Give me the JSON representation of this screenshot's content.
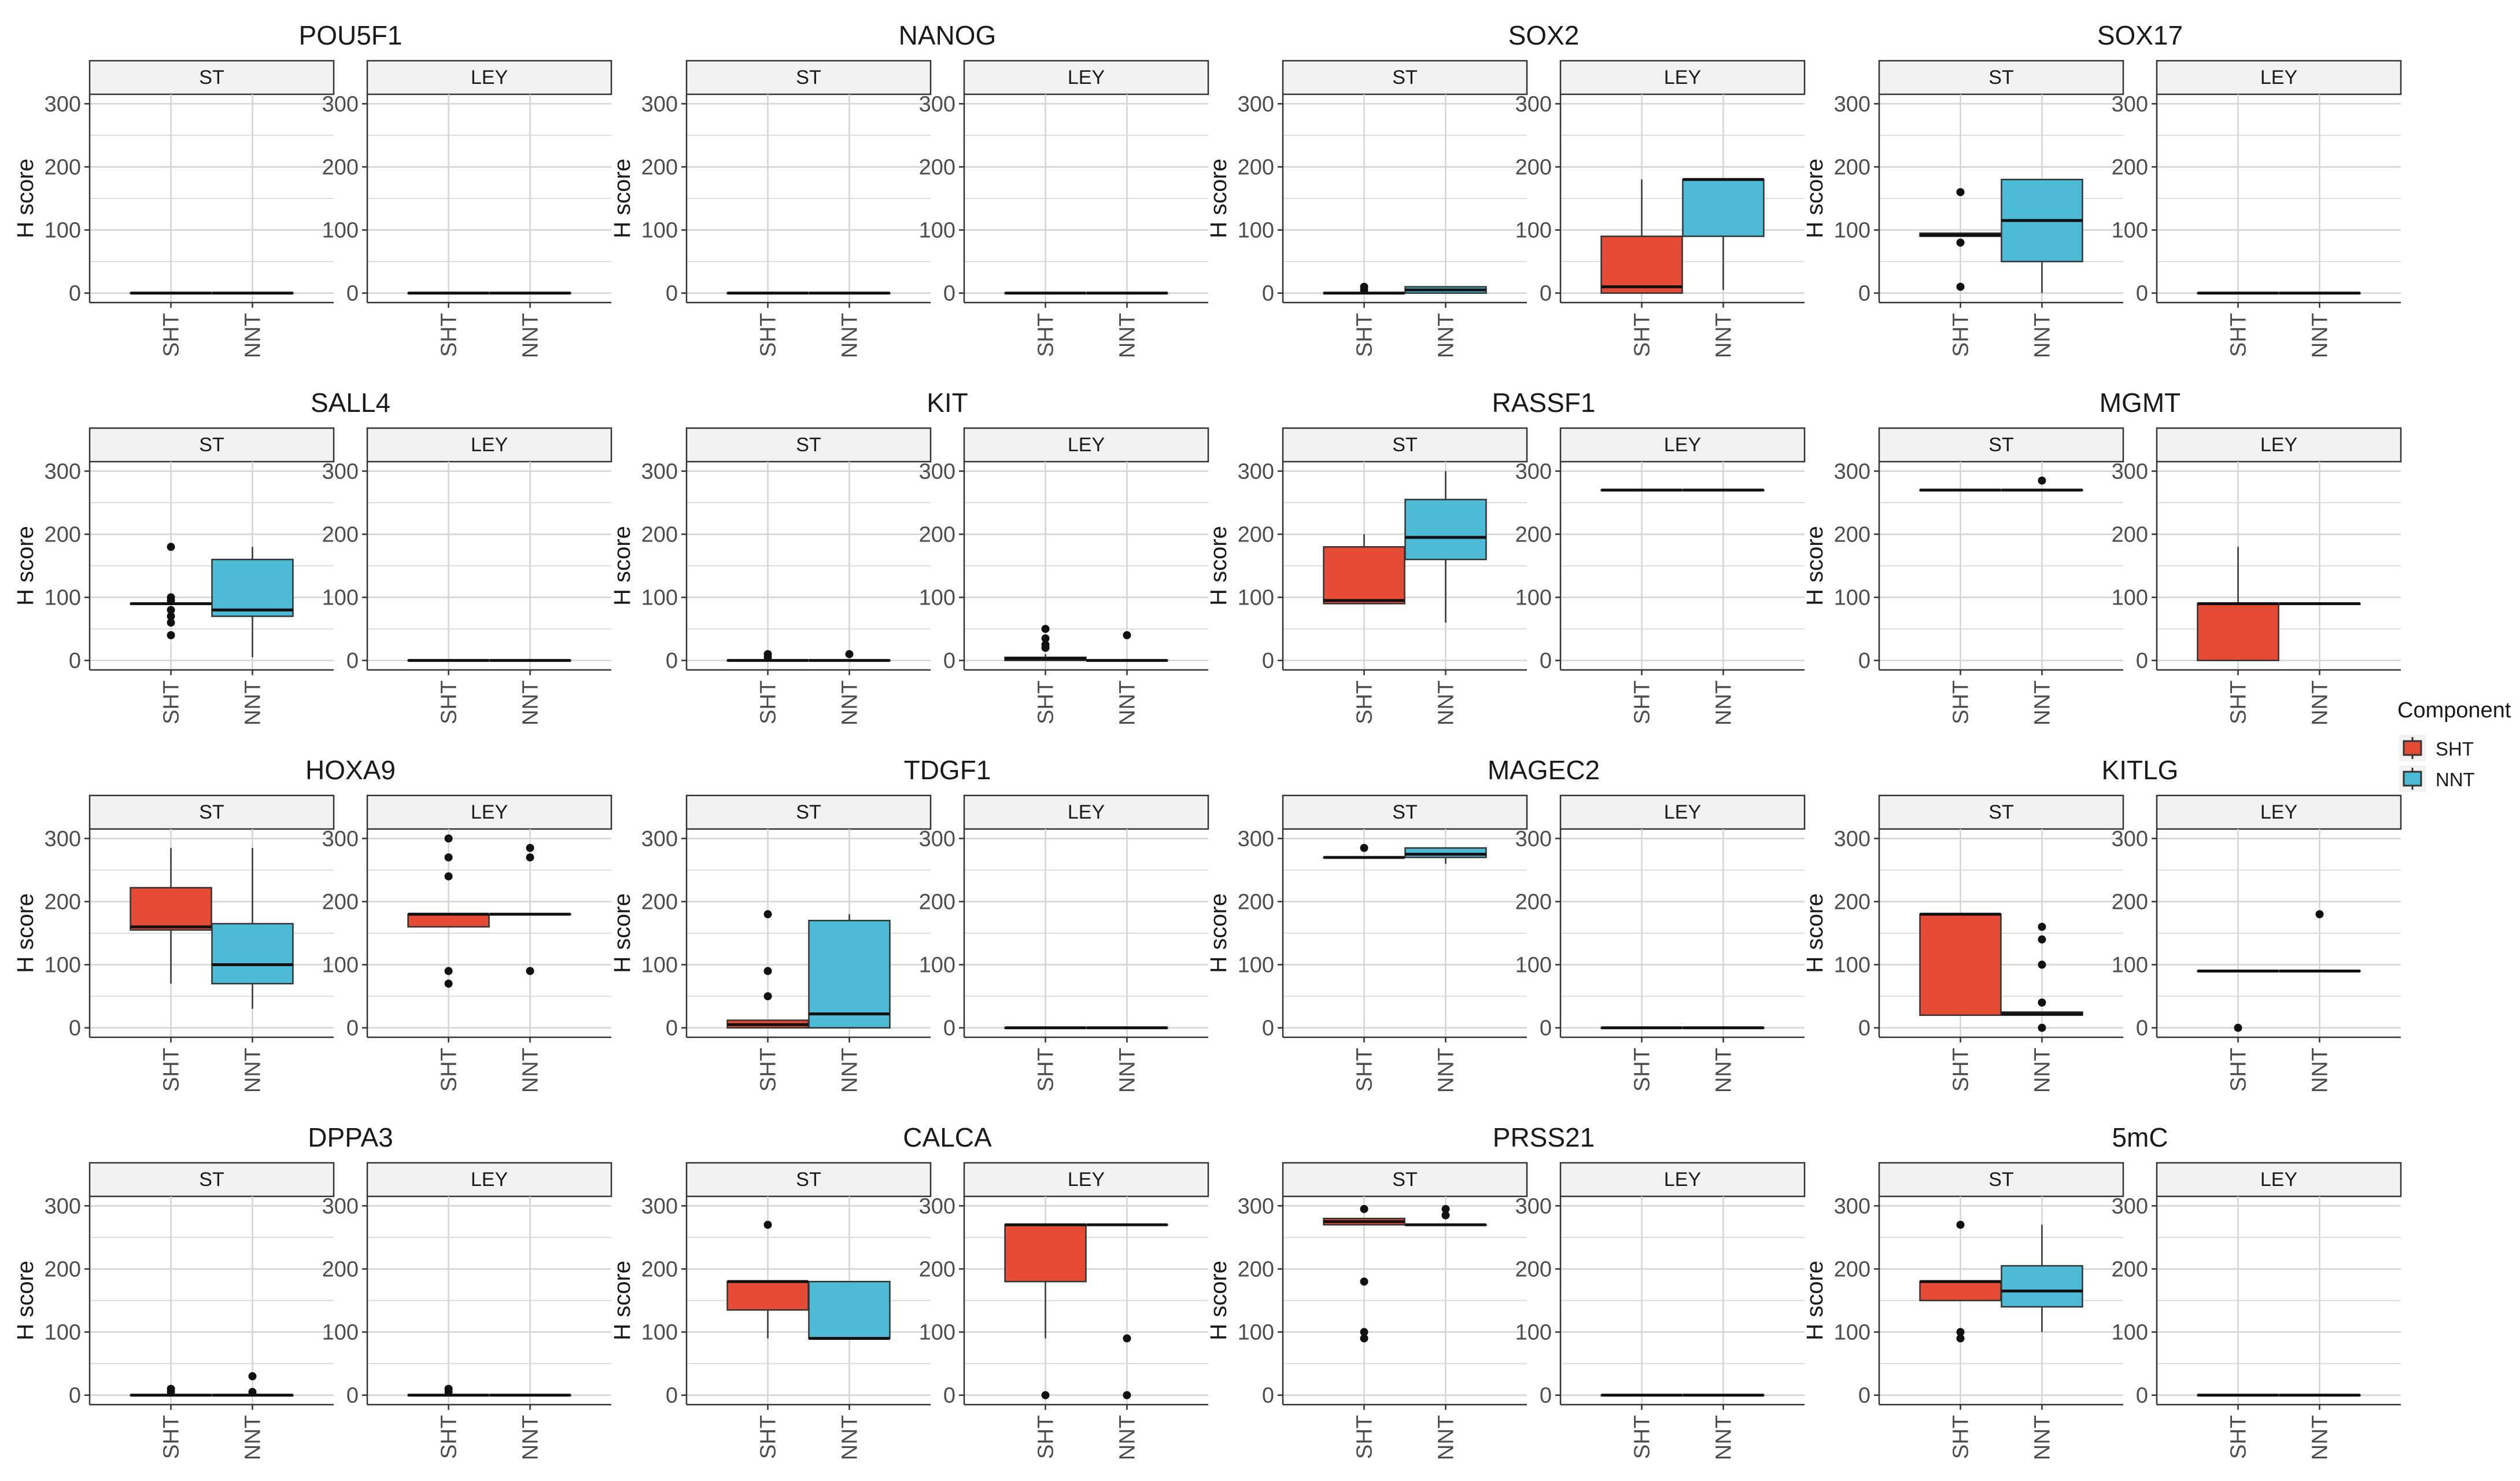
{
  "chart_data": {
    "type": "boxplot",
    "ylabel": "H score",
    "ylim": [
      -15,
      315
    ],
    "y_ticks": [
      0,
      100,
      200,
      300
    ],
    "x_categories": [
      "SHT",
      "NNT"
    ],
    "facets": [
      "ST",
      "LEY"
    ],
    "legend": {
      "title": "Component",
      "position": "right",
      "items": [
        {
          "label": "SHT",
          "color": "#e64b35"
        },
        {
          "label": "NNT",
          "color": "#4dbbd5"
        }
      ]
    },
    "panels": [
      {
        "gene": "POU5F1",
        "ST": {
          "SHT": {
            "q1": 0,
            "med": 0,
            "q3": 0,
            "lo": 0,
            "hi": 0,
            "out": []
          },
          "NNT": {
            "q1": 0,
            "med": 0,
            "q3": 0,
            "lo": 0,
            "hi": 0,
            "out": []
          }
        },
        "LEY": {
          "SHT": {
            "q1": 0,
            "med": 0,
            "q3": 0,
            "lo": 0,
            "hi": 0,
            "out": []
          },
          "NNT": {
            "q1": 0,
            "med": 0,
            "q3": 0,
            "lo": 0,
            "hi": 0,
            "out": []
          }
        }
      },
      {
        "gene": "NANOG",
        "ST": {
          "SHT": {
            "q1": 0,
            "med": 0,
            "q3": 0,
            "lo": 0,
            "hi": 0,
            "out": []
          },
          "NNT": {
            "q1": 0,
            "med": 0,
            "q3": 0,
            "lo": 0,
            "hi": 0,
            "out": []
          }
        },
        "LEY": {
          "SHT": {
            "q1": 0,
            "med": 0,
            "q3": 0,
            "lo": 0,
            "hi": 0,
            "out": []
          },
          "NNT": {
            "q1": 0,
            "med": 0,
            "q3": 0,
            "lo": 0,
            "hi": 0,
            "out": []
          }
        }
      },
      {
        "gene": "SOX2",
        "ST": {
          "SHT": {
            "q1": 0,
            "med": 0,
            "q3": 0,
            "lo": 0,
            "hi": 0,
            "out": [
              10,
              5
            ]
          },
          "NNT": {
            "q1": 0,
            "med": 5,
            "q3": 10,
            "lo": 0,
            "hi": 10,
            "out": []
          }
        },
        "LEY": {
          "SHT": {
            "q1": 0,
            "med": 10,
            "q3": 90,
            "lo": 0,
            "hi": 180,
            "out": []
          },
          "NNT": {
            "q1": 90,
            "med": 180,
            "q3": 180,
            "lo": 5,
            "hi": 180,
            "out": []
          }
        }
      },
      {
        "gene": "SOX17",
        "ST": {
          "SHT": {
            "q1": 90,
            "med": 92,
            "q3": 95,
            "lo": 90,
            "hi": 95,
            "out": [
              160,
              80,
              10
            ]
          },
          "NNT": {
            "q1": 50,
            "med": 115,
            "q3": 180,
            "lo": 0,
            "hi": 180,
            "out": []
          }
        },
        "LEY": {
          "SHT": {
            "q1": 0,
            "med": 0,
            "q3": 0,
            "lo": 0,
            "hi": 0,
            "out": []
          },
          "NNT": {
            "q1": 0,
            "med": 0,
            "q3": 0,
            "lo": 0,
            "hi": 0,
            "out": []
          }
        }
      },
      {
        "gene": "SALL4",
        "ST": {
          "SHT": {
            "q1": 90,
            "med": 90,
            "q3": 90,
            "lo": 90,
            "hi": 90,
            "out": [
              180,
              100,
              95,
              80,
              70,
              60,
              40
            ]
          },
          "NNT": {
            "q1": 70,
            "med": 80,
            "q3": 160,
            "lo": 5,
            "hi": 180,
            "out": []
          }
        },
        "LEY": {
          "SHT": {
            "q1": 0,
            "med": 0,
            "q3": 0,
            "lo": 0,
            "hi": 0,
            "out": []
          },
          "NNT": {
            "q1": 0,
            "med": 0,
            "q3": 0,
            "lo": 0,
            "hi": 0,
            "out": []
          }
        }
      },
      {
        "gene": "KIT",
        "ST": {
          "SHT": {
            "q1": 0,
            "med": 0,
            "q3": 0,
            "lo": 0,
            "hi": 0,
            "out": [
              10,
              5
            ]
          },
          "NNT": {
            "q1": 0,
            "med": 0,
            "q3": 0,
            "lo": 0,
            "hi": 0,
            "out": [
              10
            ]
          }
        },
        "LEY": {
          "SHT": {
            "q1": 0,
            "med": 3,
            "q3": 5,
            "lo": 0,
            "hi": 10,
            "out": [
              50,
              35,
              25,
              20
            ]
          },
          "NNT": {
            "q1": 0,
            "med": 0,
            "q3": 0,
            "lo": 0,
            "hi": 0,
            "out": [
              40
            ]
          }
        }
      },
      {
        "gene": "RASSF1",
        "ST": {
          "SHT": {
            "q1": 90,
            "med": 95,
            "q3": 180,
            "lo": 90,
            "hi": 200,
            "out": []
          },
          "NNT": {
            "q1": 160,
            "med": 195,
            "q3": 255,
            "lo": 60,
            "hi": 300,
            "out": []
          }
        },
        "LEY": {
          "SHT": {
            "q1": 270,
            "med": 270,
            "q3": 270,
            "lo": 270,
            "hi": 270,
            "out": []
          },
          "NNT": {
            "q1": 270,
            "med": 270,
            "q3": 270,
            "lo": 270,
            "hi": 270,
            "out": []
          }
        }
      },
      {
        "gene": "MGMT",
        "ST": {
          "SHT": {
            "q1": 270,
            "med": 270,
            "q3": 270,
            "lo": 270,
            "hi": 270,
            "out": []
          },
          "NNT": {
            "q1": 270,
            "med": 270,
            "q3": 270,
            "lo": 270,
            "hi": 270,
            "out": [
              285
            ]
          }
        },
        "LEY": {
          "SHT": {
            "q1": 0,
            "med": 90,
            "q3": 90,
            "lo": 0,
            "hi": 180,
            "out": []
          },
          "NNT": {
            "q1": 90,
            "med": 90,
            "q3": 90,
            "lo": 90,
            "hi": 90,
            "out": []
          }
        }
      },
      {
        "gene": "HOXA9",
        "ST": {
          "SHT": {
            "q1": 155,
            "med": 160,
            "q3": 222,
            "lo": 70,
            "hi": 285,
            "out": []
          },
          "NNT": {
            "q1": 70,
            "med": 100,
            "q3": 165,
            "lo": 30,
            "hi": 285,
            "out": []
          }
        },
        "LEY": {
          "SHT": {
            "q1": 160,
            "med": 180,
            "q3": 180,
            "lo": 160,
            "hi": 180,
            "out": [
              300,
              270,
              240,
              90,
              70
            ]
          },
          "NNT": {
            "q1": 180,
            "med": 180,
            "q3": 180,
            "lo": 180,
            "hi": 180,
            "out": [
              285,
              270,
              90
            ]
          }
        }
      },
      {
        "gene": "TDGF1",
        "ST": {
          "SHT": {
            "q1": 0,
            "med": 5,
            "q3": 12,
            "lo": 0,
            "hi": 12,
            "out": [
              180,
              90,
              50
            ]
          },
          "NNT": {
            "q1": 0,
            "med": 22,
            "q3": 170,
            "lo": 0,
            "hi": 180,
            "out": []
          }
        },
        "LEY": {
          "SHT": {
            "q1": 0,
            "med": 0,
            "q3": 0,
            "lo": 0,
            "hi": 0,
            "out": []
          },
          "NNT": {
            "q1": 0,
            "med": 0,
            "q3": 0,
            "lo": 0,
            "hi": 0,
            "out": []
          }
        }
      },
      {
        "gene": "MAGEC2",
        "ST": {
          "SHT": {
            "q1": 270,
            "med": 270,
            "q3": 270,
            "lo": 270,
            "hi": 270,
            "out": [
              285
            ]
          },
          "NNT": {
            "q1": 270,
            "med": 275,
            "q3": 285,
            "lo": 260,
            "hi": 285,
            "out": []
          }
        },
        "LEY": {
          "SHT": {
            "q1": 0,
            "med": 0,
            "q3": 0,
            "lo": 0,
            "hi": 0,
            "out": []
          },
          "NNT": {
            "q1": 0,
            "med": 0,
            "q3": 0,
            "lo": 0,
            "hi": 0,
            "out": []
          }
        }
      },
      {
        "gene": "KITLG",
        "ST": {
          "SHT": {
            "q1": 20,
            "med": 180,
            "q3": 180,
            "lo": 20,
            "hi": 180,
            "out": []
          },
          "NNT": {
            "q1": 20,
            "med": 22,
            "q3": 25,
            "lo": 20,
            "hi": 25,
            "out": [
              160,
              140,
              100,
              40,
              0
            ]
          }
        },
        "LEY": {
          "SHT": {
            "q1": 90,
            "med": 90,
            "q3": 90,
            "lo": 90,
            "hi": 90,
            "out": [
              0
            ]
          },
          "NNT": {
            "q1": 90,
            "med": 90,
            "q3": 90,
            "lo": 90,
            "hi": 90,
            "out": [
              180
            ]
          }
        }
      },
      {
        "gene": "DPPA3",
        "ST": {
          "SHT": {
            "q1": 0,
            "med": 0,
            "q3": 0,
            "lo": 0,
            "hi": 0,
            "out": [
              10,
              5
            ]
          },
          "NNT": {
            "q1": 0,
            "med": 0,
            "q3": 0,
            "lo": 0,
            "hi": 0,
            "out": [
              30,
              5
            ]
          }
        },
        "LEY": {
          "SHT": {
            "q1": 0,
            "med": 0,
            "q3": 0,
            "lo": 0,
            "hi": 0,
            "out": [
              10,
              5
            ]
          },
          "NNT": {
            "q1": 0,
            "med": 0,
            "q3": 0,
            "lo": 0,
            "hi": 0,
            "out": []
          }
        }
      },
      {
        "gene": "CALCA",
        "ST": {
          "SHT": {
            "q1": 135,
            "med": 180,
            "q3": 180,
            "lo": 90,
            "hi": 180,
            "out": [
              270
            ]
          },
          "NNT": {
            "q1": 90,
            "med": 90,
            "q3": 180,
            "lo": 90,
            "hi": 180,
            "out": []
          }
        },
        "LEY": {
          "SHT": {
            "q1": 180,
            "med": 270,
            "q3": 270,
            "lo": 90,
            "hi": 270,
            "out": [
              0
            ]
          },
          "NNT": {
            "q1": 270,
            "med": 270,
            "q3": 270,
            "lo": 270,
            "hi": 270,
            "out": [
              90,
              0
            ]
          }
        }
      },
      {
        "gene": "PRSS21",
        "ST": {
          "SHT": {
            "q1": 270,
            "med": 275,
            "q3": 280,
            "lo": 270,
            "hi": 280,
            "out": [
              295,
              180,
              100,
              90
            ]
          },
          "NNT": {
            "q1": 270,
            "med": 270,
            "q3": 270,
            "lo": 270,
            "hi": 270,
            "out": [
              295,
              285
            ]
          }
        },
        "LEY": {
          "SHT": {
            "q1": 0,
            "med": 0,
            "q3": 0,
            "lo": 0,
            "hi": 0,
            "out": []
          },
          "NNT": {
            "q1": 0,
            "med": 0,
            "q3": 0,
            "lo": 0,
            "hi": 0,
            "out": []
          }
        }
      },
      {
        "gene": "5mC",
        "ST": {
          "SHT": {
            "q1": 150,
            "med": 180,
            "q3": 180,
            "lo": 150,
            "hi": 180,
            "out": [
              270,
              100,
              90
            ]
          },
          "NNT": {
            "q1": 140,
            "med": 165,
            "q3": 205,
            "lo": 100,
            "hi": 270,
            "out": []
          }
        },
        "LEY": {
          "SHT": {
            "q1": 0,
            "med": 0,
            "q3": 0,
            "lo": 0,
            "hi": 0,
            "out": []
          },
          "NNT": {
            "q1": 0,
            "med": 0,
            "q3": 0,
            "lo": 0,
            "hi": 0,
            "out": []
          }
        }
      }
    ]
  }
}
